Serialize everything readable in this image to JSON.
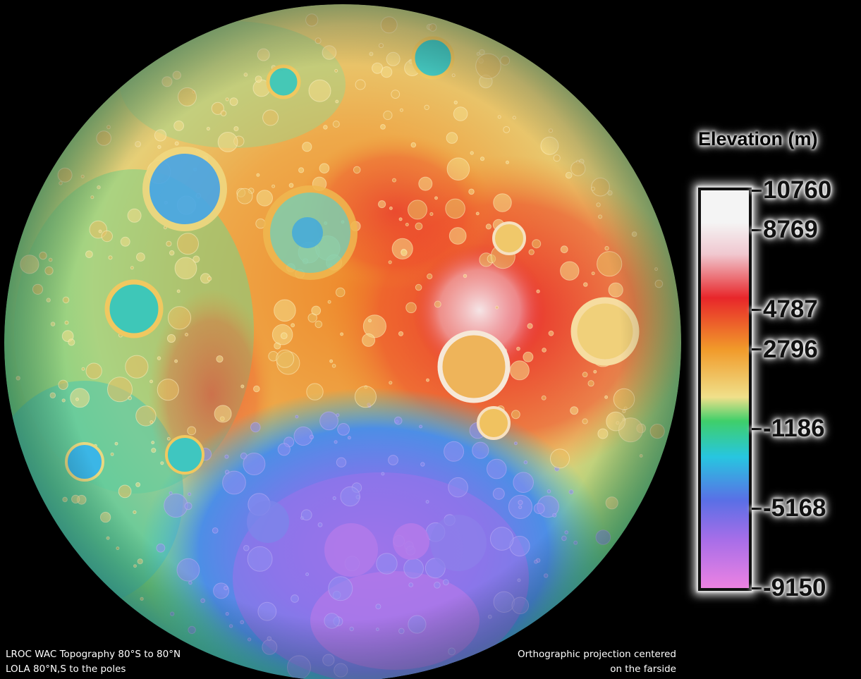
{
  "legend": {
    "title": "Elevation (m)",
    "ticks": [
      {
        "label": "10760",
        "value": 10760
      },
      {
        "label": "8769",
        "value": 8769
      },
      {
        "label": "4787",
        "value": 4787
      },
      {
        "label": "2796",
        "value": 2796
      },
      {
        "label": "-1186",
        "value": -1186
      },
      {
        "label": "-5168",
        "value": -5168
      },
      {
        "label": "-9150",
        "value": -9150
      }
    ],
    "range": [
      -9150,
      10760
    ],
    "colors": {
      "max": "#f4f4f4",
      "white_red": "#f0c8d0",
      "red": "#e8262a",
      "orange": "#f19a2a",
      "yellow": "#f0e08a",
      "green": "#3fcf6a",
      "cyan": "#27c6e0",
      "blue": "#5a6fe6",
      "violet": "#a86ee8",
      "min": "#ec82e2"
    }
  },
  "captions": {
    "left_line1": "LROC WAC Topography 80°S to 80°N",
    "left_line2": "LOLA 80°N,S to the poles",
    "right_line1": "Orthographic projection centered",
    "right_line2": "on the farside"
  },
  "globe": {
    "subject": "Moon farside topography",
    "background": "#000000"
  }
}
